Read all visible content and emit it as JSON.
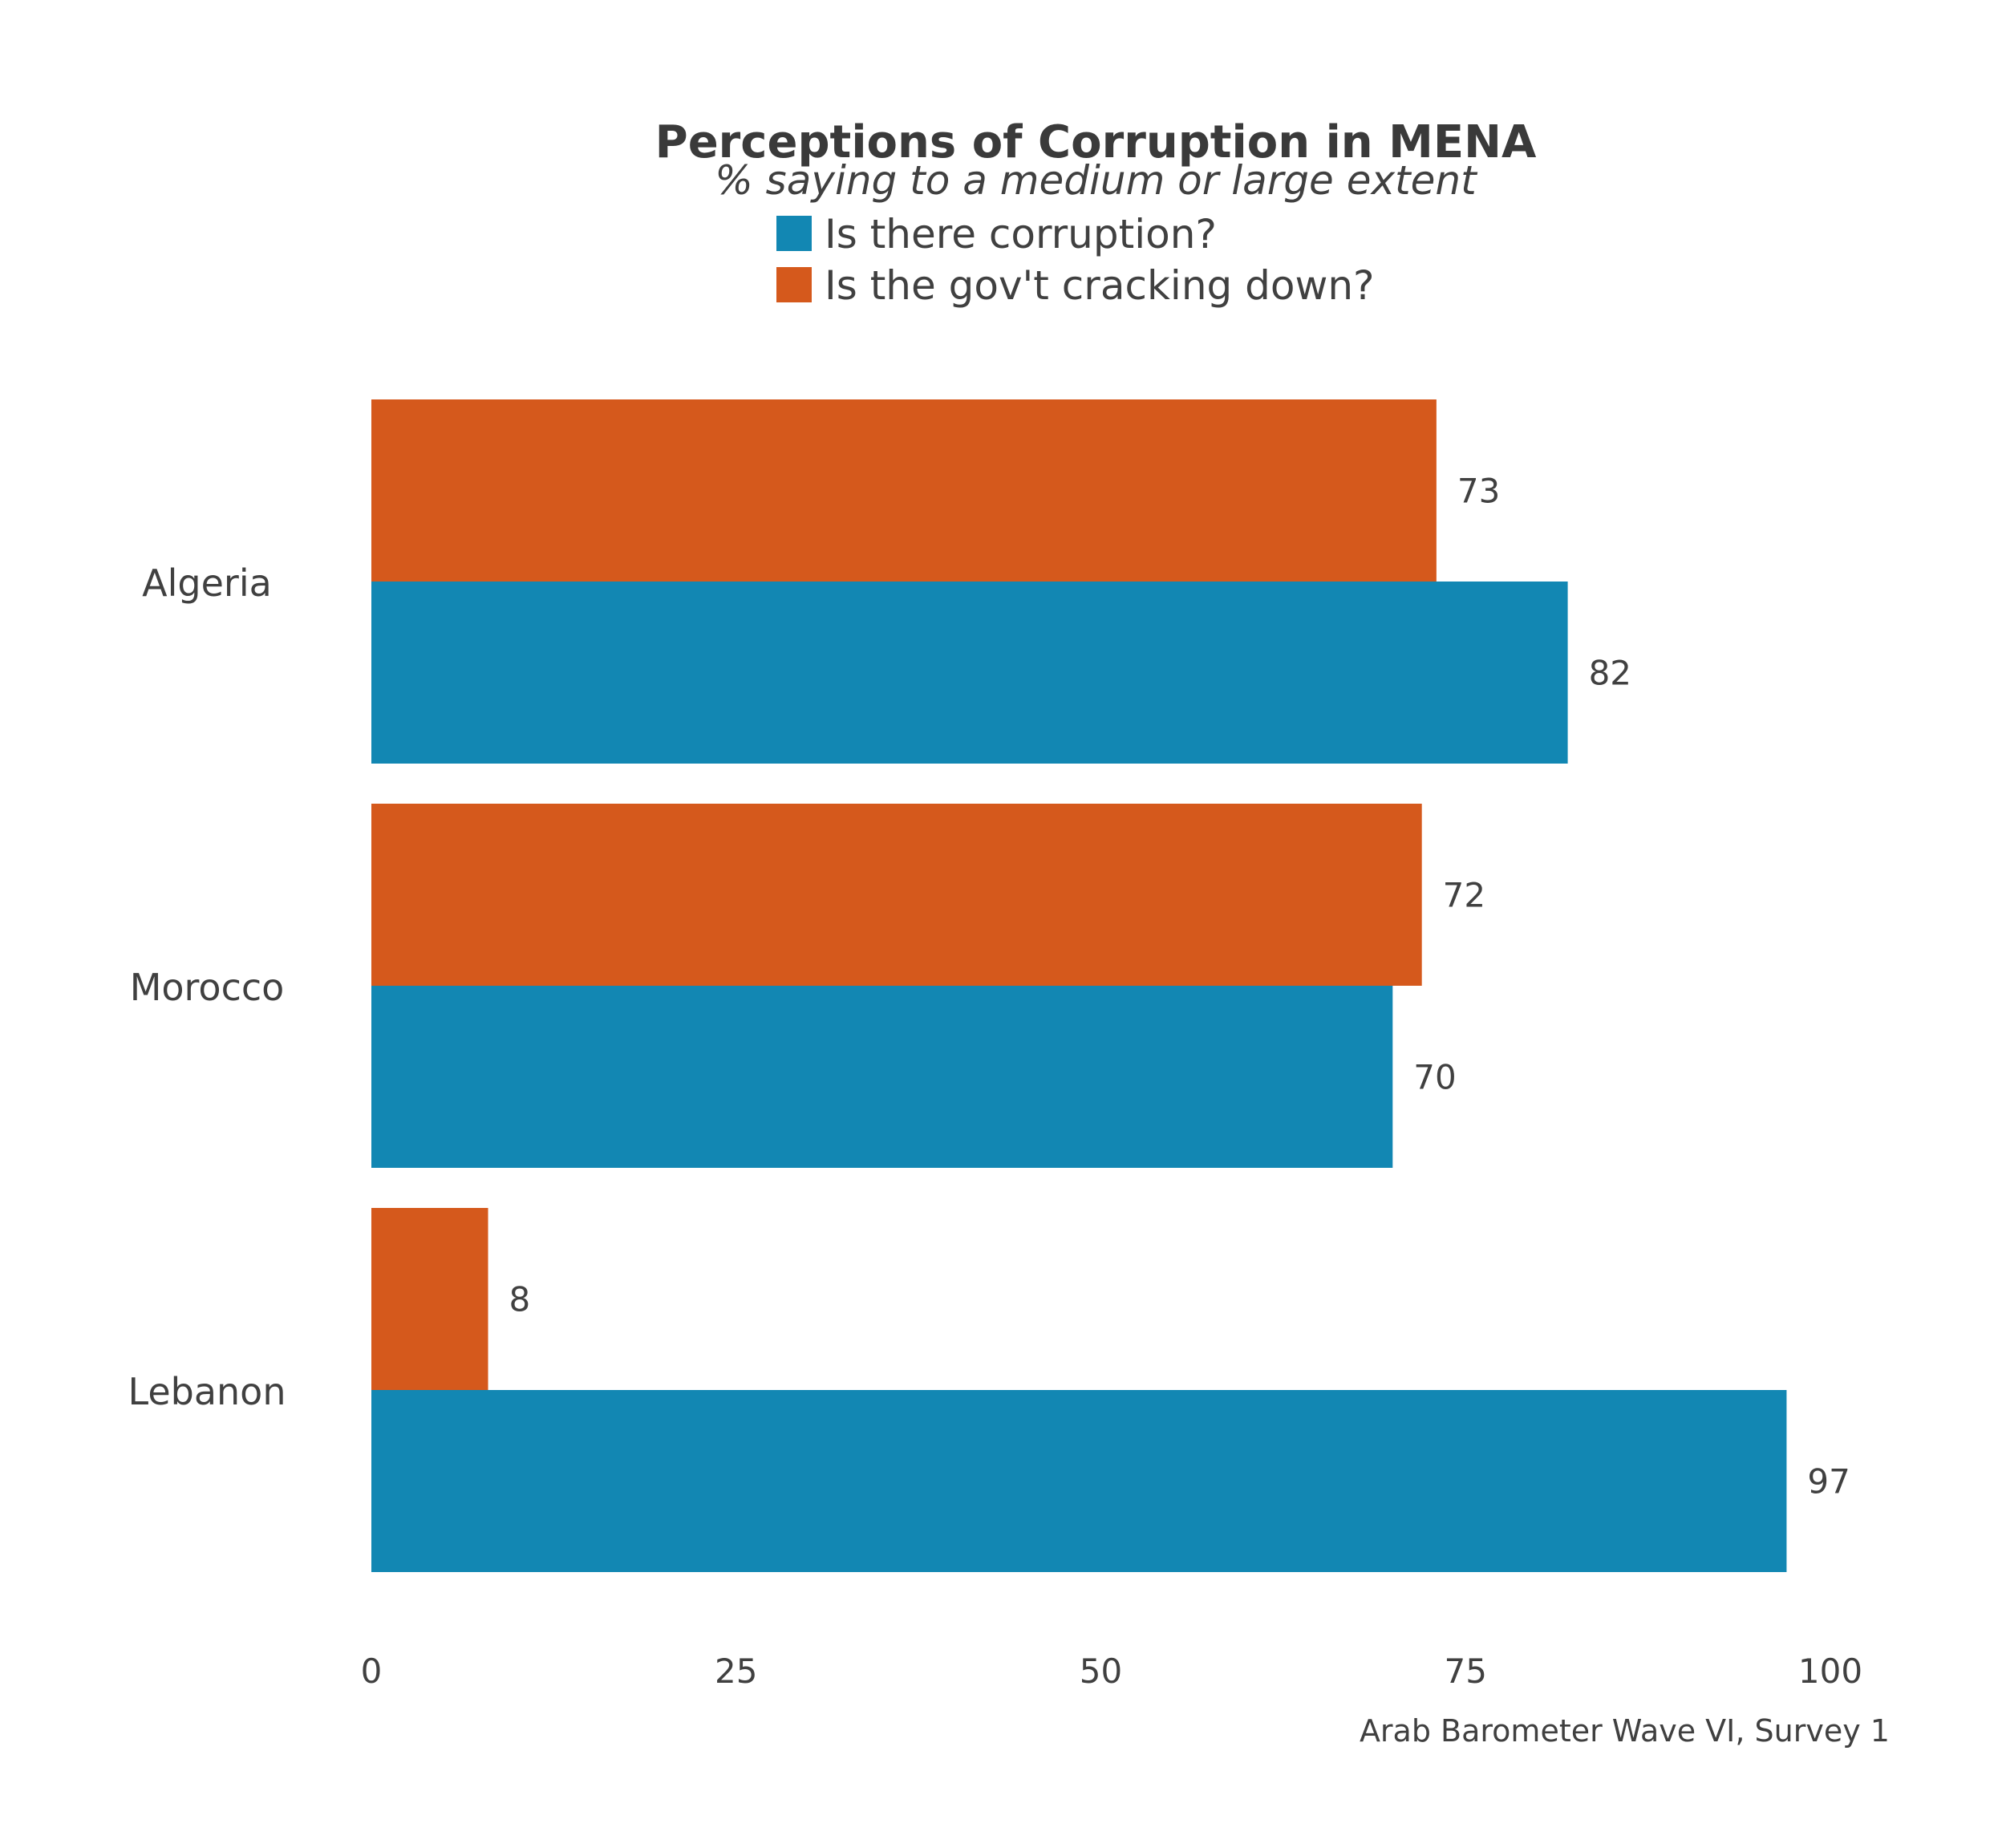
{
  "chart_data": {
    "type": "bar",
    "orientation": "horizontal",
    "title": "Perceptions of Corruption in MENA",
    "subtitle": "% saying to a medium or large extent",
    "caption": "Arab Barometer Wave VI, Survey 1",
    "categories": [
      "Algeria",
      "Morocco",
      "Lebanon"
    ],
    "series": [
      {
        "name": "Is the gov't cracking down?",
        "color": "#d5591c",
        "values": [
          73,
          72,
          8
        ],
        "labels": [
          "73",
          "72",
          "8"
        ]
      },
      {
        "name": "Is there corruption?",
        "color": "#1287b3",
        "values": [
          82,
          70,
          97
        ],
        "labels": [
          "82",
          "70",
          "97"
        ]
      }
    ],
    "legend": {
      "placement": "top-center",
      "order": [
        "Is there corruption?",
        "Is the gov't cracking down?"
      ]
    },
    "xlim": [
      0,
      100
    ],
    "xticks": [
      0,
      25,
      50,
      75,
      100
    ],
    "xtick_labels": [
      "0",
      "25",
      "50",
      "75",
      "100"
    ],
    "grid": false
  }
}
